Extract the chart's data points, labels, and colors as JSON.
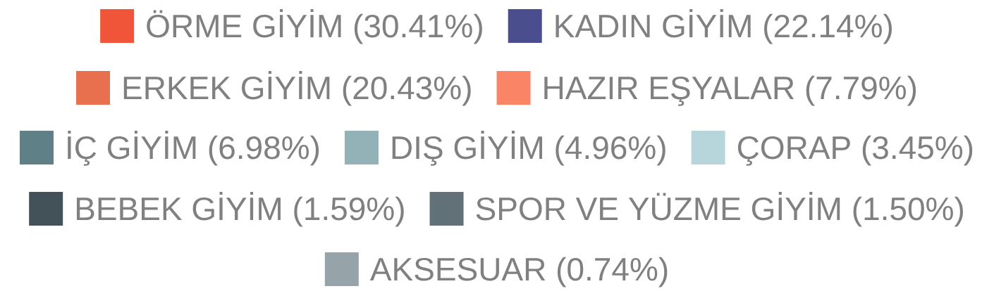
{
  "chart_data": {
    "type": "other",
    "categories": [
      "ÖRME GİYİM",
      "KADIN GİYİM",
      "ERKEK GİYİM",
      "HAZIR EŞYALAR",
      "İÇ GİYİM",
      "DIŞ GİYİM",
      "ÇORAP",
      "BEBEK GİYİM",
      "SPOR VE YÜZME GİYİM",
      "AKSESUAR"
    ],
    "values": [
      30.41,
      22.14,
      20.43,
      7.79,
      6.98,
      4.96,
      3.45,
      1.59,
      1.5,
      0.74
    ],
    "value_labels": [
      "(30.41%)",
      "(22.14%)",
      "(20.43%)",
      "(7.79%)",
      "(6.98%)",
      "(4.96%)",
      "(3.45%)",
      "(1.59%)",
      "(1.50%)",
      "(0.74%)"
    ],
    "colors": [
      "#f0553a",
      "#4a4e8f",
      "#e8704f",
      "#fa8466",
      "#5f8086",
      "#93b2b7",
      "#b7d6dc",
      "#435158",
      "#627177",
      "#96a4aa"
    ]
  }
}
